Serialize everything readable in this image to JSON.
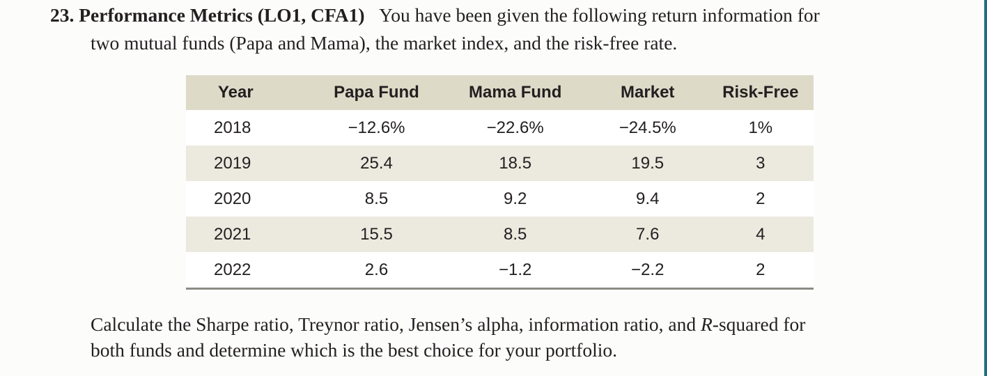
{
  "problem": {
    "number": "23.",
    "title": "Performance Metrics (LO1, CFA1)",
    "intro_line1": "You have been given the following return information for",
    "intro_line2": "two mutual funds (Papa and Mama), the market index, and the risk-free rate."
  },
  "table": {
    "headers": [
      "Year",
      "Papa Fund",
      "Mama Fund",
      "Market",
      "Risk-Free"
    ],
    "rows": [
      [
        "2018",
        "−12.6%",
        "−22.6%",
        "−24.5%",
        "1%"
      ],
      [
        "2019",
        "25.4",
        "18.5",
        "19.5",
        "3"
      ],
      [
        "2020",
        "8.5",
        "9.2",
        "9.4",
        "2"
      ],
      [
        "2021",
        "15.5",
        "8.5",
        "7.6",
        "4"
      ],
      [
        "2022",
        "2.6",
        "−1.2",
        "−2.2",
        "2"
      ]
    ]
  },
  "question": {
    "line1_before_r": "Calculate the Sharpe ratio, Treynor ratio, Jensen’s alpha, information ratio, and ",
    "r_symbol": "R",
    "line1_after_r": "-squared for",
    "line2": "both funds and determine which is the best choice for your portfolio."
  },
  "colors": {
    "header_bg": "#dedac8",
    "stripe_bg": "#ece9df",
    "accent_edge": "#1f6f7a"
  }
}
